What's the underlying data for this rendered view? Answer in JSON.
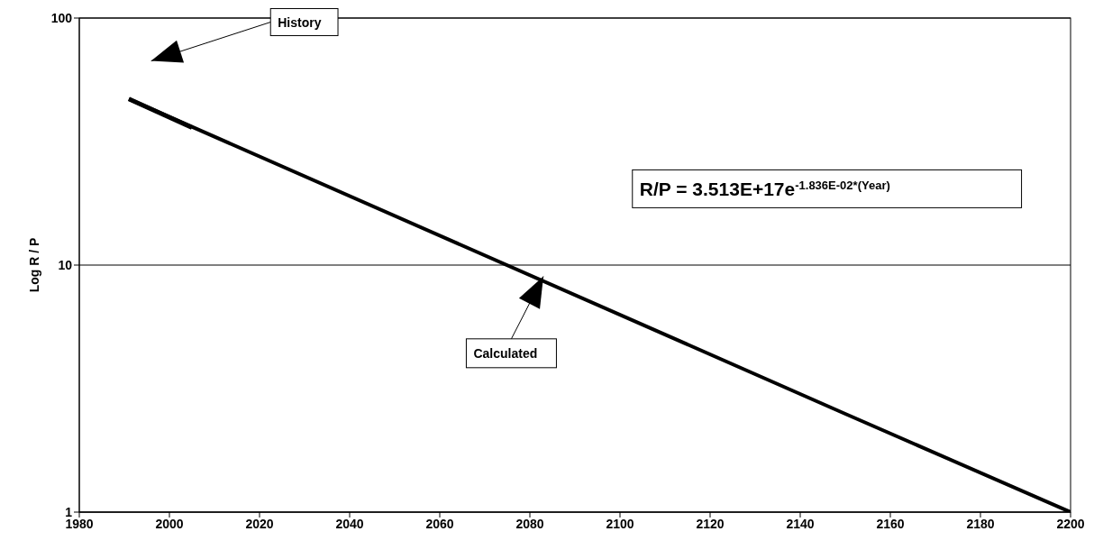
{
  "chart_data": {
    "type": "line",
    "ylabel": "Log  R / P",
    "xlim": [
      1980,
      2200
    ],
    "xticks": [
      1980,
      2000,
      2020,
      2040,
      2060,
      2080,
      2100,
      2120,
      2140,
      2160,
      2180,
      2200
    ],
    "ylim": [
      1,
      100
    ],
    "yticks": [
      1,
      10,
      100
    ],
    "log": "y",
    "grid": "y",
    "marker": "none",
    "line_style": "solid",
    "series": [
      {
        "color": "#000000",
        "x": [
          1991,
          2005
        ],
        "values": [
          47,
          36
        ]
      },
      {
        "color": "#000000",
        "x": [
          1991,
          2150,
          2200
        ],
        "values": [
          47,
          2.5,
          1
        ]
      }
    ],
    "annotations": [
      "History",
      {
        "text": "Calculated",
        "x": 2083,
        "y": 9
      },
      "R/P = 3.513E+17e$^{-1.836E-02*(Year)}$"
    ]
  }
}
